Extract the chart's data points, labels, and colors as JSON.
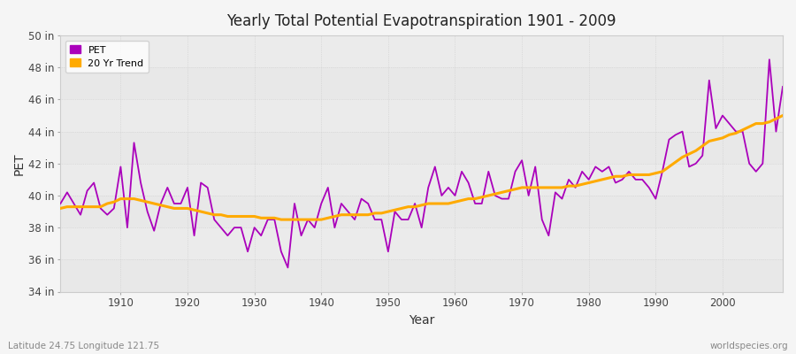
{
  "title": "Yearly Total Potential Evapotranspiration 1901 - 2009",
  "xlabel": "Year",
  "ylabel": "PET",
  "bottom_left": "Latitude 24.75 Longitude 121.75",
  "bottom_right": "worldspecies.org",
  "background_color": "#f0f0f0",
  "plot_bg_color": "#e8e8e8",
  "band_color_light": "#eeeeee",
  "band_color_dark": "#e0e0e0",
  "pet_color": "#aa00bb",
  "trend_color": "#ffaa00",
  "ylim": [
    34,
    50
  ],
  "yticks": [
    34,
    36,
    38,
    40,
    42,
    44,
    46,
    48,
    50
  ],
  "ytick_labels": [
    "34 in",
    "36 in",
    "38 in",
    "40 in",
    "42 in",
    "44 in",
    "46 in",
    "48 in",
    "50 in"
  ],
  "xlim": [
    1901,
    2009
  ],
  "years": [
    1901,
    1902,
    1903,
    1904,
    1905,
    1906,
    1907,
    1908,
    1909,
    1910,
    1911,
    1912,
    1913,
    1914,
    1915,
    1916,
    1917,
    1918,
    1919,
    1920,
    1921,
    1922,
    1923,
    1924,
    1925,
    1926,
    1927,
    1928,
    1929,
    1930,
    1931,
    1932,
    1933,
    1934,
    1935,
    1936,
    1937,
    1938,
    1939,
    1940,
    1941,
    1942,
    1943,
    1944,
    1945,
    1946,
    1947,
    1948,
    1949,
    1950,
    1951,
    1952,
    1953,
    1954,
    1955,
    1956,
    1957,
    1958,
    1959,
    1960,
    1961,
    1962,
    1963,
    1964,
    1965,
    1966,
    1967,
    1968,
    1969,
    1970,
    1971,
    1972,
    1973,
    1974,
    1975,
    1976,
    1977,
    1978,
    1979,
    1980,
    1981,
    1982,
    1983,
    1984,
    1985,
    1986,
    1987,
    1988,
    1989,
    1990,
    1991,
    1992,
    1993,
    1994,
    1995,
    1996,
    1997,
    1998,
    1999,
    2000,
    2001,
    2002,
    2003,
    2004,
    2005,
    2006,
    2007,
    2008,
    2009
  ],
  "pet_values": [
    39.5,
    40.2,
    39.5,
    38.8,
    40.3,
    40.8,
    39.2,
    38.8,
    39.2,
    41.8,
    38.0,
    43.3,
    40.8,
    39.0,
    37.8,
    39.5,
    40.5,
    39.5,
    39.5,
    40.5,
    37.5,
    40.8,
    40.5,
    38.5,
    38.0,
    37.5,
    38.0,
    38.0,
    36.5,
    38.0,
    37.5,
    38.5,
    38.5,
    36.5,
    35.5,
    39.5,
    37.5,
    38.5,
    38.0,
    39.5,
    40.5,
    38.0,
    39.5,
    39.0,
    38.5,
    39.8,
    39.5,
    38.5,
    38.5,
    36.5,
    39.0,
    38.5,
    38.5,
    39.5,
    38.0,
    40.5,
    41.8,
    40.0,
    40.5,
    40.0,
    41.5,
    40.8,
    39.5,
    39.5,
    41.5,
    40.0,
    39.8,
    39.8,
    41.5,
    42.2,
    40.0,
    41.8,
    38.5,
    37.5,
    40.2,
    39.8,
    41.0,
    40.5,
    41.5,
    41.0,
    41.8,
    41.5,
    41.8,
    40.8,
    41.0,
    41.5,
    41.0,
    41.0,
    40.5,
    39.8,
    41.5,
    43.5,
    43.8,
    44.0,
    41.8,
    42.0,
    42.5,
    47.2,
    44.2,
    45.0,
    44.5,
    44.0,
    44.0,
    42.0,
    41.5,
    42.0,
    48.5,
    44.0,
    46.8
  ],
  "trend_values": [
    39.2,
    39.3,
    39.3,
    39.3,
    39.3,
    39.3,
    39.3,
    39.5,
    39.6,
    39.8,
    39.8,
    39.8,
    39.7,
    39.6,
    39.5,
    39.4,
    39.3,
    39.2,
    39.2,
    39.2,
    39.1,
    39.0,
    38.9,
    38.8,
    38.8,
    38.7,
    38.7,
    38.7,
    38.7,
    38.7,
    38.6,
    38.6,
    38.6,
    38.5,
    38.5,
    38.5,
    38.5,
    38.5,
    38.5,
    38.5,
    38.6,
    38.7,
    38.8,
    38.8,
    38.8,
    38.8,
    38.8,
    38.9,
    38.9,
    39.0,
    39.1,
    39.2,
    39.3,
    39.3,
    39.4,
    39.5,
    39.5,
    39.5,
    39.5,
    39.6,
    39.7,
    39.8,
    39.8,
    39.9,
    40.0,
    40.1,
    40.2,
    40.3,
    40.4,
    40.5,
    40.5,
    40.5,
    40.5,
    40.5,
    40.5,
    40.5,
    40.6,
    40.6,
    40.7,
    40.8,
    40.9,
    41.0,
    41.1,
    41.2,
    41.2,
    41.3,
    41.3,
    41.3,
    41.3,
    41.4,
    41.5,
    41.8,
    42.1,
    42.4,
    42.6,
    42.8,
    43.1,
    43.4,
    43.5,
    43.6,
    43.8,
    43.9,
    44.1,
    44.3,
    44.5,
    44.5,
    44.6,
    44.8,
    45.0
  ]
}
